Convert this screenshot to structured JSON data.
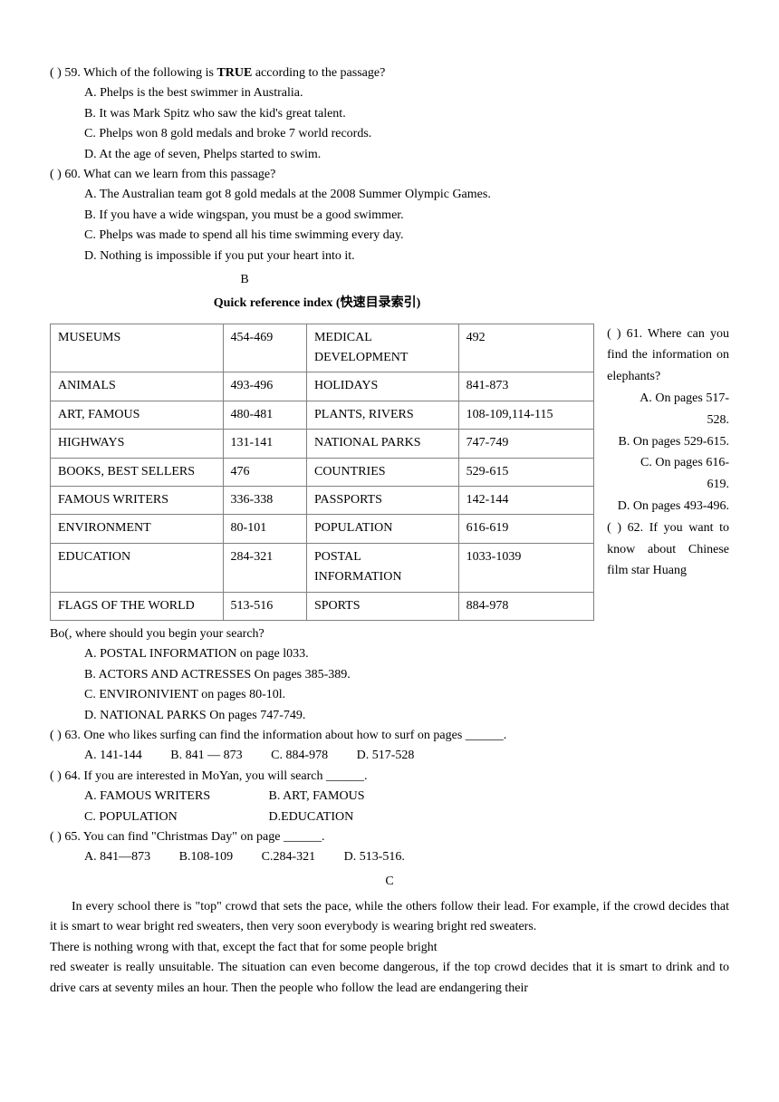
{
  "q59": {
    "line": "(       ) 59. Which of the following is ",
    "true_word": "TRUE",
    "tail": " according to the passage?",
    "A": "A. Phelps is the best swimmer in Australia.",
    "B": "B. It was Mark Spitz who saw the kid's great talent.",
    "C": "C. Phelps won 8 gold medals and broke 7 world records.",
    "D": "D. At the age of seven, Phelps started to swim."
  },
  "q60": {
    "line": "(       ) 60. What can we learn from this passage?",
    "A": "A. The Australian team got 8 gold medals at the 2008 Summer Olympic Games.",
    "B": "B. If you have a wide wingspan, you must be a good swimmer.",
    "C": "C. Phelps was made to spend all his time swimming every day.",
    "D": "D. Nothing is impossible if you put your heart into it."
  },
  "sectionB": {
    "letter": "B",
    "title": "Quick reference index (快速目录索引)"
  },
  "table": {
    "rows": [
      [
        "MUSEUMS",
        "454-469",
        "MEDICAL DEVELOPMENT",
        "492"
      ],
      [
        "ANIMALS",
        "493-496",
        "HOLIDAYS",
        "841-873"
      ],
      [
        "ART, FAMOUS",
        "480-481",
        "PLANTS, RIVERS",
        "108-109,114-115"
      ],
      [
        "HIGHWAYS",
        "131-141",
        "NATIONAL PARKS",
        "747-749"
      ],
      [
        "BOOKS, BEST SELLERS",
        "476",
        "COUNTRIES",
        "529-615"
      ],
      [
        "FAMOUS WRITERS",
        "336-338",
        "PASSPORTS",
        "142-144"
      ],
      [
        "ENVIRONMENT",
        "80-101",
        "POPULATION",
        "616-619"
      ],
      [
        "EDUCATION",
        "284-321",
        "POSTAL INFORMATION",
        "1033-1039"
      ],
      [
        "FLAGS OF THE WORLD",
        "513-516",
        "SPORTS",
        "884-978"
      ]
    ],
    "border_color": "#808080",
    "cell_fontsize": 14
  },
  "side": {
    "q61_line": "(       ) 61. Where can you find the information on elephants?",
    "q61_A": "A. On pages 517-528.",
    "q61_B": "B. On pages 529-615.",
    "q61_C": "C. On pages 616-619.",
    "q61_D": "D. On pages 493-496.",
    "q62_line": "(       ) 62. If you want to know about Chinese film star Huang"
  },
  "q62cont": {
    "line": "Bo(, where should you begin your search?",
    "A": "A. POSTAL INFORMATION on page l033.",
    "B": "B. ACTORS AND ACTRESSES On pages 385-389.",
    "C": "C. ENVIRONIVIENT on pages 80-10l.",
    "D": "D. NATIONAL PARKS On pages 747-749."
  },
  "q63": {
    "line": "(       ) 63. One who likes surfing can find the information about how to surf on pages ______.",
    "A": "A. 141-144",
    "B": "B. 841 — 873",
    "C": "C. 884-978",
    "D": "D. 517-528"
  },
  "q64": {
    "line": "(       ) 64. If you are interested in MoYan, you will search ______.",
    "A": "A. FAMOUS WRITERS",
    "B": "B. ART, FAMOUS",
    "C": "C. POPULATION",
    "D": "D.EDUCATION"
  },
  "q65": {
    "line": "(       ) 65. You can find \"Christmas Day\" on page ______.",
    "A": "A. 841—873",
    "B": "B.108-109",
    "C": "C.284-321",
    "D": "D. 513-516."
  },
  "sectionC": {
    "letter": "C",
    "p1": "In every school there is \"top\" crowd that sets the pace, while the others follow their lead. For example, if the crowd decides that it is smart to wear bright red sweaters, then very soon everybody is wearing bright red sweaters.",
    "p2": "There is nothing wrong with that, except the fact that for some people bright",
    "p3": "red sweater is really unsuitable. The situation can even become dangerous, if the top crowd decides that it is smart to drink and to drive cars at seventy miles an hour. Then the people who follow the lead are endangering their"
  }
}
